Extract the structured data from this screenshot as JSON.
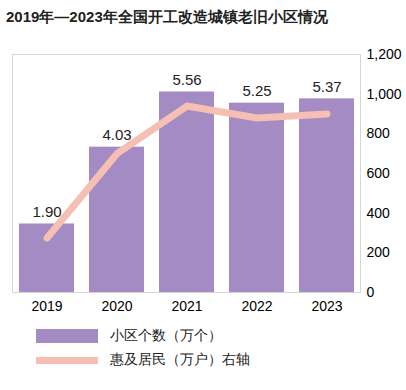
{
  "chart_data": {
    "type": "bar",
    "title": "2019年—2023年全国开工改造城镇老旧小区情况",
    "categories": [
      "2019",
      "2020",
      "2021",
      "2022",
      "2023"
    ],
    "series": [
      {
        "name": "小区个数（万个）",
        "type": "bar",
        "color": "#a48bc3",
        "values": [
          1.9,
          4.03,
          5.56,
          5.25,
          5.37
        ],
        "value_labels": [
          "1.90",
          "4.03",
          "5.56",
          "5.25",
          "5.37"
        ]
      },
      {
        "name": "惠及居民（万户）右轴",
        "type": "line",
        "axis": "y2",
        "color": "#f6bfb3",
        "values": [
          275,
          700,
          940,
          880,
          900
        ]
      }
    ],
    "ylim": [
      0,
      6.6
    ],
    "yticks": [],
    "y2lim": [
      0,
      1200
    ],
    "y2ticks": [
      0,
      200,
      400,
      600,
      800,
      1000,
      1200
    ],
    "data_labels": true,
    "legend": "bottom"
  }
}
